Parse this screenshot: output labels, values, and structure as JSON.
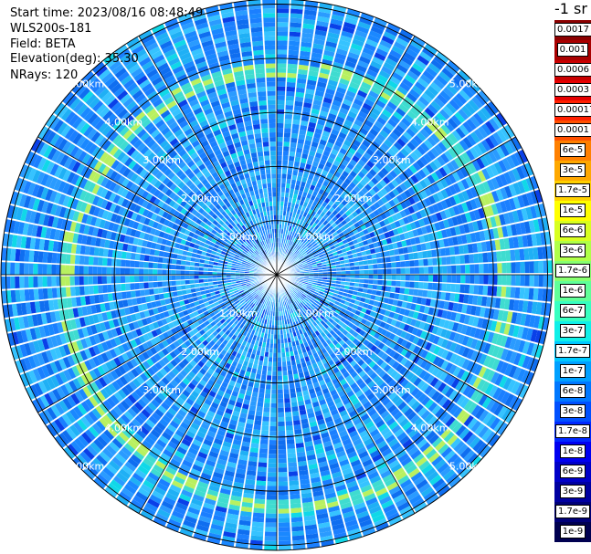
{
  "header": {
    "start_time": "Start time: 2023/08/16 08:48:49",
    "device": "WLS200s-181",
    "field": "Field: BETA",
    "elevation": "Elevation(deg): 35.30",
    "nrays": "NRays: 120"
  },
  "legend": {
    "unit": "-1 sr",
    "items": [
      {
        "label": "0.0017",
        "color": "#8b0000"
      },
      {
        "label": "0.001",
        "color": "#a80000"
      },
      {
        "label": "0.0006",
        "color": "#c80000"
      },
      {
        "label": "0.0003",
        "color": "#e50000"
      },
      {
        "label": "0.00017",
        "color": "#ff2000"
      },
      {
        "label": "0.0001",
        "color": "#ff5000"
      },
      {
        "label": "6e-5",
        "color": "#ff8000"
      },
      {
        "label": "3e-5",
        "color": "#ffa800"
      },
      {
        "label": "1.7e-5",
        "color": "#ffd000"
      },
      {
        "label": "1e-5",
        "color": "#ffff00"
      },
      {
        "label": "6e-6",
        "color": "#d8ff20"
      },
      {
        "label": "3e-6",
        "color": "#b0ff48"
      },
      {
        "label": "1.7e-6",
        "color": "#88ff70"
      },
      {
        "label": "1e-6",
        "color": "#60ff98"
      },
      {
        "label": "6e-7",
        "color": "#38ffc0"
      },
      {
        "label": "3e-7",
        "color": "#10f0e8"
      },
      {
        "label": "1.7e-7",
        "color": "#00c8ff"
      },
      {
        "label": "1e-7",
        "color": "#00a0ff"
      },
      {
        "label": "6e-8",
        "color": "#0078ff"
      },
      {
        "label": "3e-8",
        "color": "#0050ff"
      },
      {
        "label": "1.7e-8",
        "color": "#0028ff"
      },
      {
        "label": "1e-8",
        "color": "#0000f0"
      },
      {
        "label": "6e-9",
        "color": "#0000c8"
      },
      {
        "label": "3e-9",
        "color": "#0000a0"
      },
      {
        "label": "1.7e-9",
        "color": "#000078"
      },
      {
        "label": "1e-9",
        "color": "#000050"
      }
    ]
  },
  "range_labels": [
    "1.00km",
    "2.00km",
    "3.00km",
    "4.00km",
    "5.00km"
  ],
  "scan": {
    "ring_colors": {
      "background": "#1f8fff",
      "ring": "#3fdcd0",
      "ring_hot": "#b8f060"
    }
  }
}
